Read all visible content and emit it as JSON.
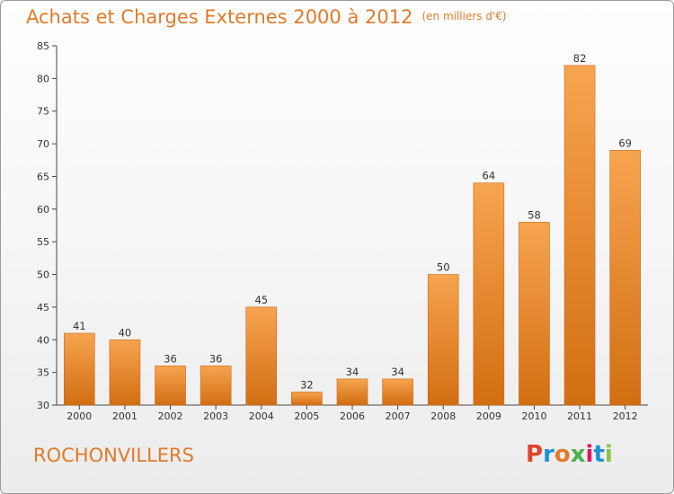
{
  "title": "Achats et Charges Externes 2000 à 2012",
  "unit": "(en milliers d'€)",
  "town": "ROCHONVILLERS",
  "logo": {
    "text": "Proxiti",
    "colors": [
      "#e0432a",
      "#1e90d6",
      "#e07a2a",
      "#4caf50",
      "#d81b60",
      "#1e90d6",
      "#8bc34a"
    ]
  },
  "colors": {
    "bar_top": "#f7a450",
    "bar_bottom": "#d26e12",
    "accent": "#e07a2a"
  },
  "chart_data": {
    "type": "bar",
    "categories": [
      "2000",
      "2001",
      "2002",
      "2003",
      "2004",
      "2005",
      "2006",
      "2007",
      "2008",
      "2009",
      "2010",
      "2011",
      "2012"
    ],
    "values": [
      41,
      40,
      36,
      36,
      45,
      32,
      34,
      34,
      50,
      64,
      58,
      82,
      69
    ],
    "ylim": [
      30,
      85
    ],
    "yticks": [
      30,
      35,
      40,
      45,
      50,
      55,
      60,
      65,
      70,
      75,
      80,
      85
    ],
    "grid": false,
    "data_labels": true
  }
}
